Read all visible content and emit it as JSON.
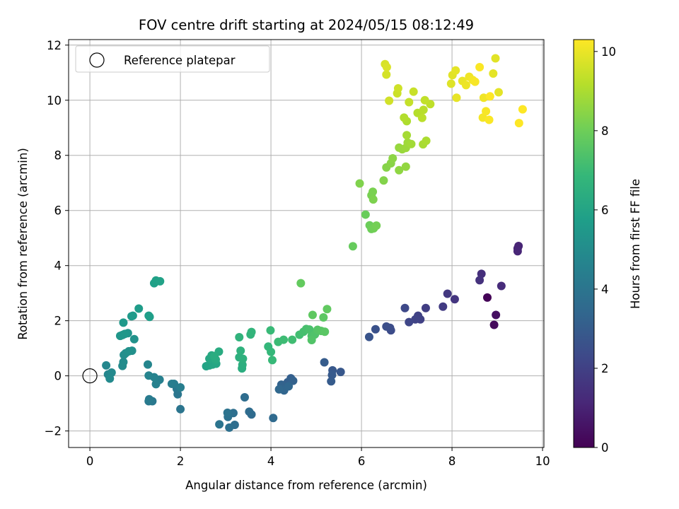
{
  "chart_data": {
    "type": "scatter",
    "title": "FOV centre drift starting at 2024/05/15 08:12:49",
    "xlabel": "Angular distance from reference (arcmin)",
    "ylabel": "Rotation from reference (arcmin)",
    "xlim": [
      -0.47,
      10.03
    ],
    "ylim": [
      -2.6,
      12.2
    ],
    "x_ticks": [
      0,
      2,
      4,
      6,
      8,
      10
    ],
    "y_ticks": [
      -2,
      0,
      2,
      4,
      6,
      8,
      10,
      12
    ],
    "x_tick_labels": [
      "0",
      "2",
      "4",
      "6",
      "8",
      "10"
    ],
    "y_tick_labels": [
      "−2",
      "0",
      "2",
      "4",
      "6",
      "8",
      "10",
      "12"
    ],
    "grid": true,
    "legend": {
      "placement": "top-left",
      "entries": [
        "Reference platepar"
      ]
    },
    "reference_point": {
      "x": 0,
      "y": 0,
      "label": "Reference platepar"
    },
    "colorbar": {
      "label": "Hours from first FF file",
      "min": 0,
      "max": 10.3,
      "ticks": [
        0,
        2,
        4,
        6,
        8,
        10
      ],
      "tick_labels": [
        "0",
        "2",
        "4",
        "6",
        "8",
        "10"
      ],
      "colormap": "viridis",
      "colors": [
        "#440154",
        "#482878",
        "#3e4989",
        "#31688e",
        "#26828e",
        "#1f9e89",
        "#35b779",
        "#6ece58",
        "#b5de2b",
        "#fde725"
      ]
    },
    "points": [
      [
        8.78,
        2.84,
        0.1
      ],
      [
        8.93,
        1.85,
        0.25
      ],
      [
        8.97,
        2.21,
        0.4
      ],
      [
        9.45,
        4.62,
        1.0
      ],
      [
        9.47,
        4.71,
        1.05
      ],
      [
        9.45,
        4.52,
        1.1
      ],
      [
        9.09,
        3.26,
        1.3
      ],
      [
        8.65,
        3.7,
        1.4
      ],
      [
        8.61,
        3.47,
        1.5
      ],
      [
        8.06,
        2.78,
        1.6
      ],
      [
        7.9,
        2.98,
        1.7
      ],
      [
        7.8,
        2.51,
        1.8
      ],
      [
        7.42,
        2.46,
        1.9
      ],
      [
        7.3,
        2.05,
        2.0
      ],
      [
        7.25,
        2.18,
        2.05
      ],
      [
        7.19,
        2.05,
        2.1
      ],
      [
        7.05,
        1.95,
        2.2
      ],
      [
        6.96,
        2.46,
        2.3
      ],
      [
        6.65,
        1.65,
        2.4
      ],
      [
        6.63,
        1.74,
        2.45
      ],
      [
        6.55,
        1.79,
        2.5
      ],
      [
        6.31,
        1.69,
        2.6
      ],
      [
        6.17,
        1.41,
        2.7
      ],
      [
        5.54,
        0.14,
        2.8
      ],
      [
        5.36,
        0.2,
        2.85
      ],
      [
        5.35,
        0.03,
        2.9
      ],
      [
        5.33,
        -0.2,
        2.95
      ],
      [
        5.18,
        0.49,
        3.0
      ],
      [
        4.44,
        -0.09,
        3.1
      ],
      [
        4.37,
        -0.23,
        3.15
      ],
      [
        4.49,
        -0.18,
        3.2
      ],
      [
        4.23,
        -0.32,
        3.25
      ],
      [
        4.25,
        -0.46,
        3.3
      ],
      [
        4.29,
        -0.53,
        3.35
      ],
      [
        4.39,
        -0.38,
        3.4
      ],
      [
        4.18,
        -0.49,
        3.45
      ],
      [
        4.05,
        -1.53,
        3.5
      ],
      [
        3.57,
        -1.4,
        3.55
      ],
      [
        3.52,
        -1.3,
        3.6
      ],
      [
        3.42,
        -0.78,
        3.65
      ],
      [
        3.2,
        -1.78,
        3.7
      ],
      [
        3.17,
        -1.35,
        3.75
      ],
      [
        3.08,
        -1.88,
        3.8
      ],
      [
        3.05,
        -1.49,
        3.85
      ],
      [
        3.04,
        -1.34,
        3.9
      ],
      [
        2.86,
        -1.76,
        3.95
      ],
      [
        2.0,
        -1.21,
        4.0
      ],
      [
        1.94,
        -0.67,
        4.05
      ],
      [
        1.92,
        -0.47,
        4.1
      ],
      [
        1.38,
        -0.92,
        4.15
      ],
      [
        1.3,
        -0.92,
        4.2
      ],
      [
        1.31,
        -0.85,
        4.25
      ],
      [
        1.86,
        -0.29,
        4.3
      ],
      [
        1.81,
        -0.29,
        4.35
      ],
      [
        2.0,
        -0.42,
        4.4
      ],
      [
        1.54,
        -0.14,
        4.45
      ],
      [
        1.48,
        -0.21,
        4.5
      ],
      [
        1.46,
        -0.3,
        4.55
      ],
      [
        1.42,
        -0.05,
        4.6
      ],
      [
        1.3,
        0.01,
        4.65
      ],
      [
        1.28,
        0.41,
        4.7
      ],
      [
        0.4,
        0.05,
        4.75
      ],
      [
        0.36,
        0.38,
        4.8
      ],
      [
        0.48,
        0.12,
        4.85
      ],
      [
        0.44,
        -0.1,
        4.9
      ],
      [
        0.72,
        0.36,
        4.95
      ],
      [
        0.74,
        0.5,
        5.0
      ],
      [
        0.75,
        0.76,
        5.05
      ],
      [
        0.79,
        0.82,
        5.1
      ],
      [
        0.93,
        0.91,
        5.15
      ],
      [
        0.86,
        0.89,
        5.2
      ],
      [
        0.98,
        1.33,
        5.25
      ],
      [
        0.84,
        1.55,
        5.3
      ],
      [
        0.72,
        1.48,
        5.35
      ],
      [
        0.67,
        1.45,
        5.4
      ],
      [
        0.77,
        1.52,
        5.45
      ],
      [
        0.74,
        1.93,
        5.5
      ],
      [
        0.92,
        2.16,
        5.55
      ],
      [
        0.95,
        2.18,
        5.6
      ],
      [
        1.08,
        2.44,
        5.65
      ],
      [
        1.3,
        2.18,
        5.7
      ],
      [
        1.32,
        2.14,
        5.75
      ],
      [
        1.42,
        3.36,
        5.8
      ],
      [
        1.46,
        3.46,
        5.85
      ],
      [
        1.55,
        3.43,
        5.9
      ],
      [
        2.57,
        0.35,
        5.95
      ],
      [
        2.64,
        0.38,
        6.0
      ],
      [
        2.71,
        0.41,
        6.05
      ],
      [
        2.79,
        0.44,
        6.1
      ],
      [
        2.64,
        0.62,
        6.15
      ],
      [
        2.69,
        0.74,
        6.2
      ],
      [
        2.78,
        0.59,
        6.25
      ],
      [
        2.85,
        0.88,
        6.3
      ],
      [
        2.75,
        0.72,
        6.35
      ],
      [
        3.36,
        0.27,
        6.4
      ],
      [
        3.37,
        0.4,
        6.45
      ],
      [
        3.3,
        0.67,
        6.5
      ],
      [
        3.38,
        0.62,
        6.55
      ],
      [
        3.33,
        0.91,
        6.6
      ],
      [
        3.3,
        1.4,
        6.65
      ],
      [
        3.55,
        1.5,
        6.7
      ],
      [
        3.57,
        1.59,
        6.75
      ],
      [
        3.94,
        1.06,
        6.8
      ],
      [
        4.0,
        0.87,
        6.85
      ],
      [
        4.03,
        0.57,
        6.9
      ],
      [
        3.99,
        1.65,
        6.95
      ],
      [
        4.16,
        1.23,
        7.0
      ],
      [
        4.28,
        1.31,
        7.05
      ],
      [
        4.47,
        1.31,
        7.1
      ],
      [
        4.63,
        1.49,
        7.15
      ],
      [
        4.72,
        1.6,
        7.2
      ],
      [
        4.78,
        1.7,
        7.25
      ],
      [
        4.85,
        1.68,
        7.3
      ],
      [
        4.9,
        1.45,
        7.35
      ],
      [
        4.97,
        1.5,
        7.4
      ],
      [
        4.9,
        1.3,
        7.45
      ],
      [
        5.03,
        1.67,
        7.5
      ],
      [
        5.11,
        1.63,
        7.55
      ],
      [
        5.19,
        1.6,
        7.6
      ],
      [
        5.16,
        2.12,
        7.65
      ],
      [
        4.92,
        2.21,
        7.7
      ],
      [
        5.24,
        2.42,
        7.75
      ],
      [
        4.66,
        3.36,
        7.8
      ],
      [
        5.81,
        4.7,
        7.85
      ],
      [
        6.09,
        5.85,
        7.9
      ],
      [
        6.18,
        5.46,
        7.95
      ],
      [
        6.22,
        5.33,
        8.0
      ],
      [
        6.27,
        5.35,
        8.05
      ],
      [
        6.33,
        5.45,
        8.1
      ],
      [
        6.22,
        6.55,
        8.15
      ],
      [
        6.25,
        6.68,
        8.2
      ],
      [
        6.26,
        6.4,
        8.25
      ],
      [
        5.96,
        6.98,
        8.3
      ],
      [
        6.49,
        7.09,
        8.35
      ],
      [
        6.55,
        7.56,
        8.4
      ],
      [
        6.65,
        7.71,
        8.45
      ],
      [
        6.69,
        7.89,
        8.5
      ],
      [
        6.83,
        7.46,
        8.55
      ],
      [
        6.98,
        7.59,
        8.6
      ],
      [
        6.83,
        8.28,
        8.65
      ],
      [
        6.9,
        8.22,
        8.7
      ],
      [
        6.98,
        8.27,
        8.75
      ],
      [
        7.02,
        8.46,
        8.8
      ],
      [
        7.1,
        8.41,
        8.85
      ],
      [
        7.0,
        8.73,
        8.9
      ],
      [
        7.36,
        8.4,
        8.95
      ],
      [
        7.43,
        8.53,
        9.0
      ],
      [
        7.0,
        9.24,
        9.05
      ],
      [
        6.94,
        9.37,
        9.1
      ],
      [
        7.24,
        9.54,
        9.15
      ],
      [
        7.37,
        9.65,
        9.2
      ],
      [
        7.34,
        9.36,
        9.25
      ],
      [
        7.52,
        9.86,
        9.3
      ],
      [
        7.4,
        10.0,
        9.35
      ],
      [
        7.05,
        9.93,
        9.4
      ],
      [
        7.15,
        10.31,
        9.45
      ],
      [
        6.79,
        10.25,
        9.5
      ],
      [
        6.81,
        10.43,
        9.55
      ],
      [
        6.61,
        9.98,
        9.6
      ],
      [
        6.55,
        10.93,
        9.65
      ],
      [
        6.52,
        11.31,
        9.7
      ],
      [
        6.56,
        11.2,
        9.75
      ],
      [
        7.98,
        10.6,
        9.8
      ],
      [
        8.01,
        10.91,
        9.85
      ],
      [
        8.08,
        11.08,
        9.9
      ],
      [
        8.1,
        10.09,
        9.95
      ],
      [
        8.23,
        10.7,
        10.0
      ],
      [
        8.31,
        10.55,
        10.05
      ],
      [
        8.38,
        10.85,
        10.1
      ],
      [
        8.46,
        10.73,
        10.15
      ],
      [
        8.51,
        10.67,
        10.2
      ],
      [
        8.61,
        11.2,
        10.25
      ],
      [
        8.7,
        10.09,
        10.1
      ],
      [
        8.68,
        9.37,
        10.15
      ],
      [
        8.75,
        9.6,
        10.2
      ],
      [
        8.82,
        9.29,
        10.25
      ],
      [
        8.84,
        10.14,
        10.3
      ],
      [
        8.91,
        10.97,
        9.9
      ],
      [
        8.96,
        11.52,
        9.85
      ],
      [
        9.03,
        10.29,
        9.9
      ],
      [
        9.48,
        9.17,
        10.3
      ],
      [
        9.56,
        9.67,
        10.3
      ]
    ]
  }
}
